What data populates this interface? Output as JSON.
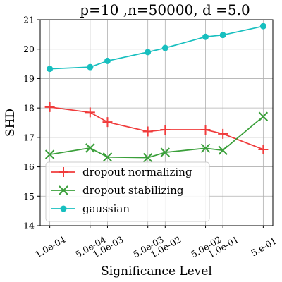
{
  "chart_data": {
    "type": "line",
    "title": "p=10 ,n=50000, d =5.0",
    "xlabel": "Significance Level",
    "ylabel": "SHD",
    "x": [
      0.0001,
      0.0005,
      0.001,
      0.005,
      0.01,
      0.05,
      0.1,
      0.5
    ],
    "x_scale": "log",
    "x_tick_labels": [
      "1.0e-04",
      "5.0e-04",
      "1.0e-03",
      "5.0e-03",
      "1.0e-02",
      "5.0e-02",
      "1.0e-01",
      "5.e-01"
    ],
    "ylim": [
      14,
      21
    ],
    "y_ticks": [
      14,
      15,
      16,
      17,
      18,
      19,
      20,
      21
    ],
    "grid": true,
    "legend_position": "lower-left",
    "series": [
      {
        "name": "dropout normalizing",
        "color": "#f03b3b",
        "marker": "plus",
        "values": [
          18.03,
          17.85,
          17.52,
          17.2,
          17.26,
          17.26,
          17.12,
          16.59
        ]
      },
      {
        "name": "dropout stabilizing",
        "color": "#3a9f3a",
        "marker": "x",
        "values": [
          16.42,
          16.64,
          16.33,
          16.31,
          16.49,
          16.63,
          16.56,
          17.71
        ]
      },
      {
        "name": "gaussian",
        "color": "#17bfbf",
        "marker": "circle",
        "values": [
          19.33,
          19.39,
          19.6,
          19.9,
          20.04,
          20.42,
          20.48,
          20.78
        ]
      }
    ]
  }
}
